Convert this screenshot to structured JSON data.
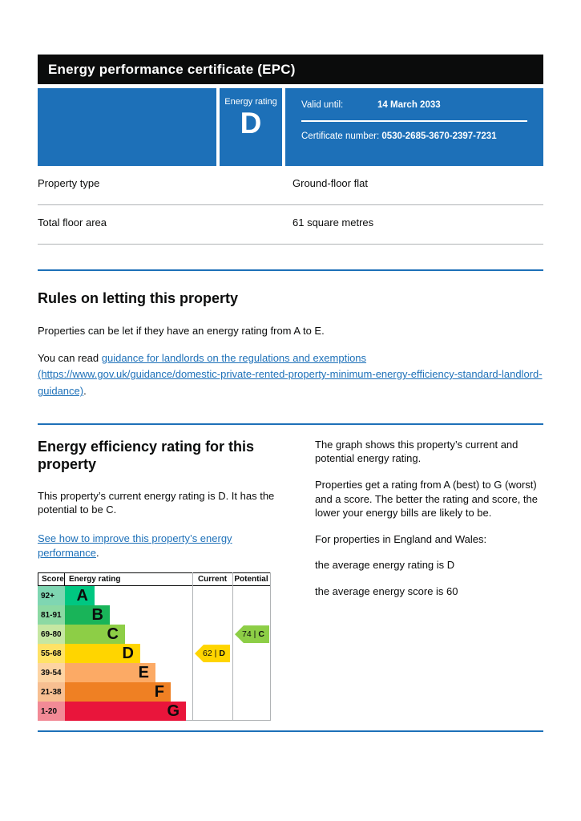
{
  "colors": {
    "brand_blue": "#1d70b8",
    "header_black": "#0b0c0c",
    "link_blue": "#1d70b8",
    "divider_gray": "#b1b4b6"
  },
  "title_bar": {
    "title": "Energy performance certificate (EPC)"
  },
  "summary_box": {
    "rating_label": "Energy rating",
    "rating": "D",
    "valid_until_label": "Valid until:",
    "valid_until": "14 March 2033",
    "certificate_number_label": "Certificate number:",
    "certificate_number": "0530-2685-3670-2397-7231"
  },
  "property_details": {
    "rows": [
      {
        "label": "Property type",
        "value": "Ground-floor flat"
      },
      {
        "label": "Total floor area",
        "value": "61 square metres"
      }
    ]
  },
  "rules_section": {
    "heading": "Rules on letting this property",
    "paragraph1": "Properties can be let if they have an energy rating from A to E.",
    "paragraph2_prefix": "You can read ",
    "link_text": "guidance for landlords on the regulations and exemptions (https://www.gov.uk/guidance/domestic-private-rented-property-minimum-energy-efficiency-standard-landlord-guidance)",
    "paragraph2_suffix": "."
  },
  "rating_section": {
    "heading": "Energy efficiency rating for this property",
    "paragraph1": "This property’s current energy rating is D. It has the potential to be C.",
    "link_text": "See how to improve this property’s energy performance",
    "link_suffix": ".",
    "right_paragraphs": [
      "The graph shows this property’s current and potential energy rating.",
      "Properties get a rating from A (best) to G (worst) and a score. The better the rating and score, the lower your energy bills are likely to be.",
      "For properties in England and Wales:"
    ],
    "average_lines": [
      "the average energy rating is D",
      "the average energy score is 60"
    ]
  },
  "chart": {
    "type": "epc-rating-graph",
    "headers": {
      "score": "Score",
      "rating": "Energy rating",
      "current": "Current",
      "potential": "Potential"
    },
    "bands": [
      {
        "score": "92+",
        "letter": "A",
        "color": "#00c781",
        "tint": "#7fd6b2"
      },
      {
        "score": "81-91",
        "letter": "B",
        "color": "#19b459",
        "tint": "#8cd9a3"
      },
      {
        "score": "69-80",
        "letter": "C",
        "color": "#8dce46",
        "tint": "#c6e7a2"
      },
      {
        "score": "55-68",
        "letter": "D",
        "color": "#ffd500",
        "tint": "#ffe266"
      },
      {
        "score": "39-54",
        "letter": "E",
        "color": "#fcaa65",
        "tint": "#fdd4a3"
      },
      {
        "score": "21-38",
        "letter": "F",
        "color": "#ef8023",
        "tint": "#f7bf91"
      },
      {
        "score": "1-20",
        "letter": "G",
        "color": "#e9153b",
        "tint": "#f28a96"
      }
    ],
    "current": {
      "score": "62",
      "band": "D",
      "separator": "|",
      "row_index": 3,
      "color": "#ffd500"
    },
    "potential": {
      "score": "74",
      "band": "C",
      "separator": "|",
      "row_index": 2,
      "color": "#8dce46"
    }
  }
}
